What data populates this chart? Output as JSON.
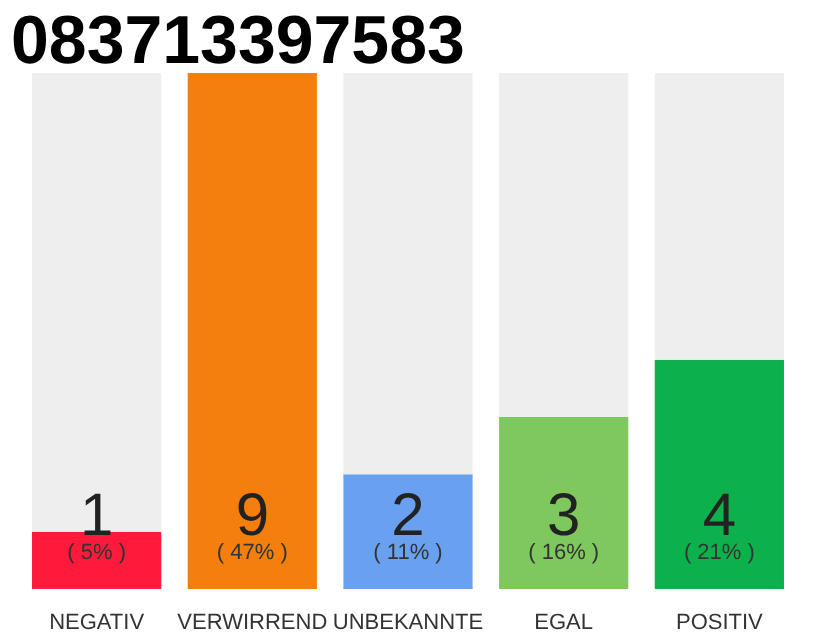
{
  "chart_data": {
    "type": "bar",
    "title": "083713397583",
    "categories": [
      "NEGATIV",
      "VERWIRREND",
      "UNBEKANNTE",
      "EGAL",
      "POSITIV"
    ],
    "stacked": true,
    "series": [
      {
        "colors": [
          "#ff1a3c",
          "#f47f0d",
          "#6aa0f0",
          "#7ec85e",
          "#0db14b"
        ],
        "values": [
          1,
          9,
          2,
          3,
          4
        ],
        "value_labels": [
          "1",
          "9",
          "2",
          "3",
          "4"
        ]
      },
      {
        "color": "#eeeeee",
        "values": [
          8,
          0,
          7,
          6,
          5
        ],
        "value_labels": [
          null,
          null,
          null,
          null,
          null
        ]
      }
    ],
    "annotations": [
      "( 5% )",
      "( 47% )",
      "( 11% )",
      "( 16% )",
      "( 21% )"
    ],
    "grid": false
  }
}
